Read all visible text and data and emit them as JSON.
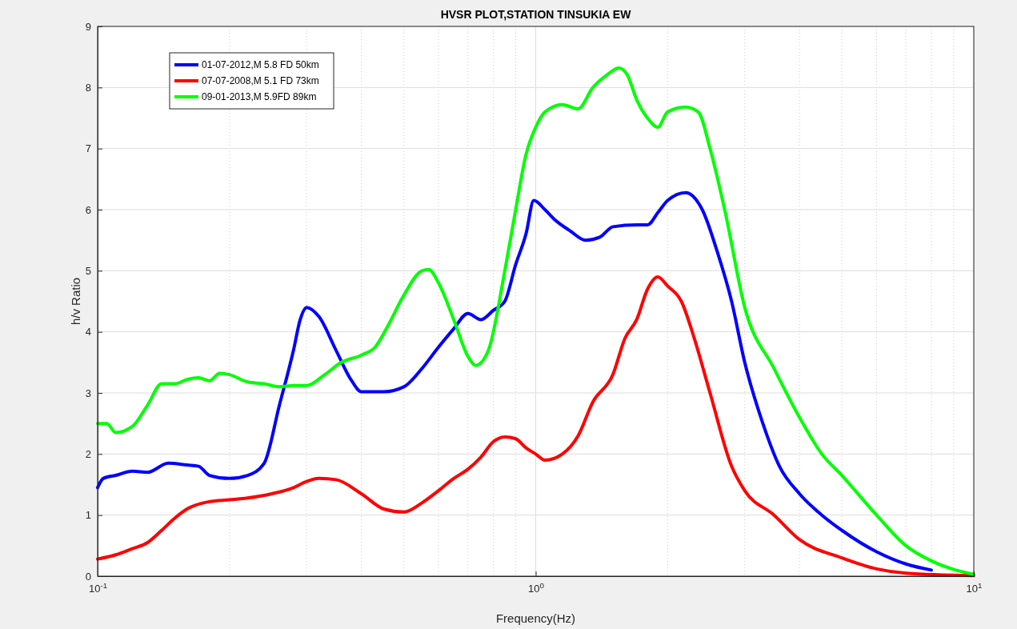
{
  "chart_data": {
    "type": "line",
    "title": "HVSR PLOT,STATION TINSUKIA EW",
    "xlabel": "Frequency(Hz)",
    "ylabel": "h/v Ratio",
    "log": "x",
    "grid": true,
    "legend": "top left",
    "line_style": "solid",
    "marker": "none",
    "xlim": [
      0.1,
      10
    ],
    "xticks": [
      {
        "value": 0.1,
        "label": "10$^{-1}$"
      },
      {
        "value": 1,
        "label": "10$^{0}$"
      },
      {
        "value": 10,
        "label": "10$^{1}$"
      }
    ],
    "ylim": [
      0,
      9
    ],
    "yticks": [
      0,
      1,
      2,
      3,
      4,
      5,
      6,
      7,
      8,
      9
    ],
    "series": [
      {
        "name": "01-07-2012,M 5.8 FD 50km",
        "color": "#0000ff",
        "x": [
          0.1,
          0.103,
          0.11,
          0.12,
          0.13,
          0.145,
          0.16,
          0.17,
          0.18,
          0.2,
          0.22,
          0.24,
          0.26,
          0.28,
          0.29,
          0.3,
          0.32,
          0.35,
          0.38,
          0.4,
          0.45,
          0.5,
          0.55,
          0.6,
          0.65,
          0.7,
          0.75,
          0.8,
          0.85,
          0.9,
          0.95,
          0.99,
          1.05,
          1.1,
          1.2,
          1.3,
          1.4,
          1.5,
          1.7,
          1.8,
          1.9,
          2.0,
          2.2,
          2.4,
          2.6,
          2.8,
          3.0,
          3.3,
          3.6,
          4,
          4.5,
          5,
          6,
          7,
          8
        ],
        "values": [
          1.45,
          1.6,
          1.65,
          1.72,
          1.7,
          1.85,
          1.82,
          1.8,
          1.65,
          1.6,
          1.65,
          1.85,
          2.8,
          3.7,
          4.2,
          4.4,
          4.25,
          3.7,
          3.2,
          3.02,
          3.02,
          3.1,
          3.4,
          3.75,
          4.05,
          4.3,
          4.2,
          4.35,
          4.5,
          5.1,
          5.6,
          6.15,
          6.0,
          5.85,
          5.65,
          5.5,
          5.55,
          5.72,
          5.75,
          5.75,
          5.95,
          6.15,
          6.28,
          6.0,
          5.3,
          4.5,
          3.5,
          2.5,
          1.8,
          1.35,
          1.0,
          0.75,
          0.4,
          0.2,
          0.1
        ]
      },
      {
        "name": "07-07-2008,M 5.1 FD 73km",
        "color": "#ff0000",
        "x": [
          0.1,
          0.11,
          0.12,
          0.13,
          0.14,
          0.15,
          0.16,
          0.18,
          0.2,
          0.22,
          0.25,
          0.28,
          0.3,
          0.32,
          0.35,
          0.4,
          0.45,
          0.5,
          0.55,
          0.6,
          0.65,
          0.7,
          0.75,
          0.8,
          0.85,
          0.9,
          0.95,
          1.0,
          1.05,
          1.15,
          1.25,
          1.35,
          1.5,
          1.6,
          1.7,
          1.8,
          1.9,
          2.0,
          2.15,
          2.3,
          2.5,
          2.8,
          3.0,
          3.5,
          4,
          5,
          6,
          7,
          10
        ],
        "values": [
          0.28,
          0.35,
          0.45,
          0.55,
          0.75,
          0.95,
          1.1,
          1.22,
          1.25,
          1.28,
          1.35,
          1.45,
          1.55,
          1.6,
          1.58,
          1.35,
          1.1,
          1.05,
          1.2,
          1.4,
          1.6,
          1.75,
          1.95,
          2.2,
          2.28,
          2.25,
          2.1,
          2.0,
          1.9,
          2.0,
          2.3,
          2.85,
          3.3,
          3.9,
          4.2,
          4.7,
          4.9,
          4.75,
          4.5,
          3.9,
          3.0,
          1.8,
          1.4,
          1.0,
          0.6,
          0.3,
          0.12,
          0.05,
          0.01
        ]
      },
      {
        "name": "09-01-2013,M 5.9FD 89km",
        "color": "#00ff00",
        "x": [
          0.1,
          0.105,
          0.11,
          0.12,
          0.13,
          0.14,
          0.15,
          0.16,
          0.17,
          0.18,
          0.19,
          0.2,
          0.22,
          0.24,
          0.26,
          0.28,
          0.3,
          0.33,
          0.36,
          0.4,
          0.43,
          0.46,
          0.5,
          0.55,
          0.57,
          0.6,
          0.65,
          0.7,
          0.73,
          0.78,
          0.85,
          0.9,
          0.95,
          1.0,
          1.05,
          1.15,
          1.25,
          1.35,
          1.45,
          1.55,
          1.62,
          1.7,
          1.8,
          1.9,
          2.0,
          2.2,
          2.35,
          2.5,
          2.7,
          3.0,
          3.5,
          4,
          4.5,
          5,
          6,
          7,
          8,
          10
        ],
        "values": [
          2.5,
          2.5,
          2.35,
          2.45,
          2.8,
          3.15,
          3.15,
          3.22,
          3.25,
          3.2,
          3.32,
          3.3,
          3.18,
          3.15,
          3.1,
          3.12,
          3.12,
          3.3,
          3.5,
          3.62,
          3.75,
          4.1,
          4.6,
          5.0,
          5.02,
          4.8,
          4.2,
          3.6,
          3.45,
          3.7,
          5.0,
          6.0,
          6.9,
          7.35,
          7.6,
          7.72,
          7.65,
          8.0,
          8.2,
          8.32,
          8.2,
          7.8,
          7.5,
          7.35,
          7.6,
          7.68,
          7.6,
          7.0,
          6.0,
          4.4,
          3.4,
          2.6,
          2.0,
          1.65,
          1.0,
          0.5,
          0.25,
          0.03
        ]
      }
    ]
  }
}
